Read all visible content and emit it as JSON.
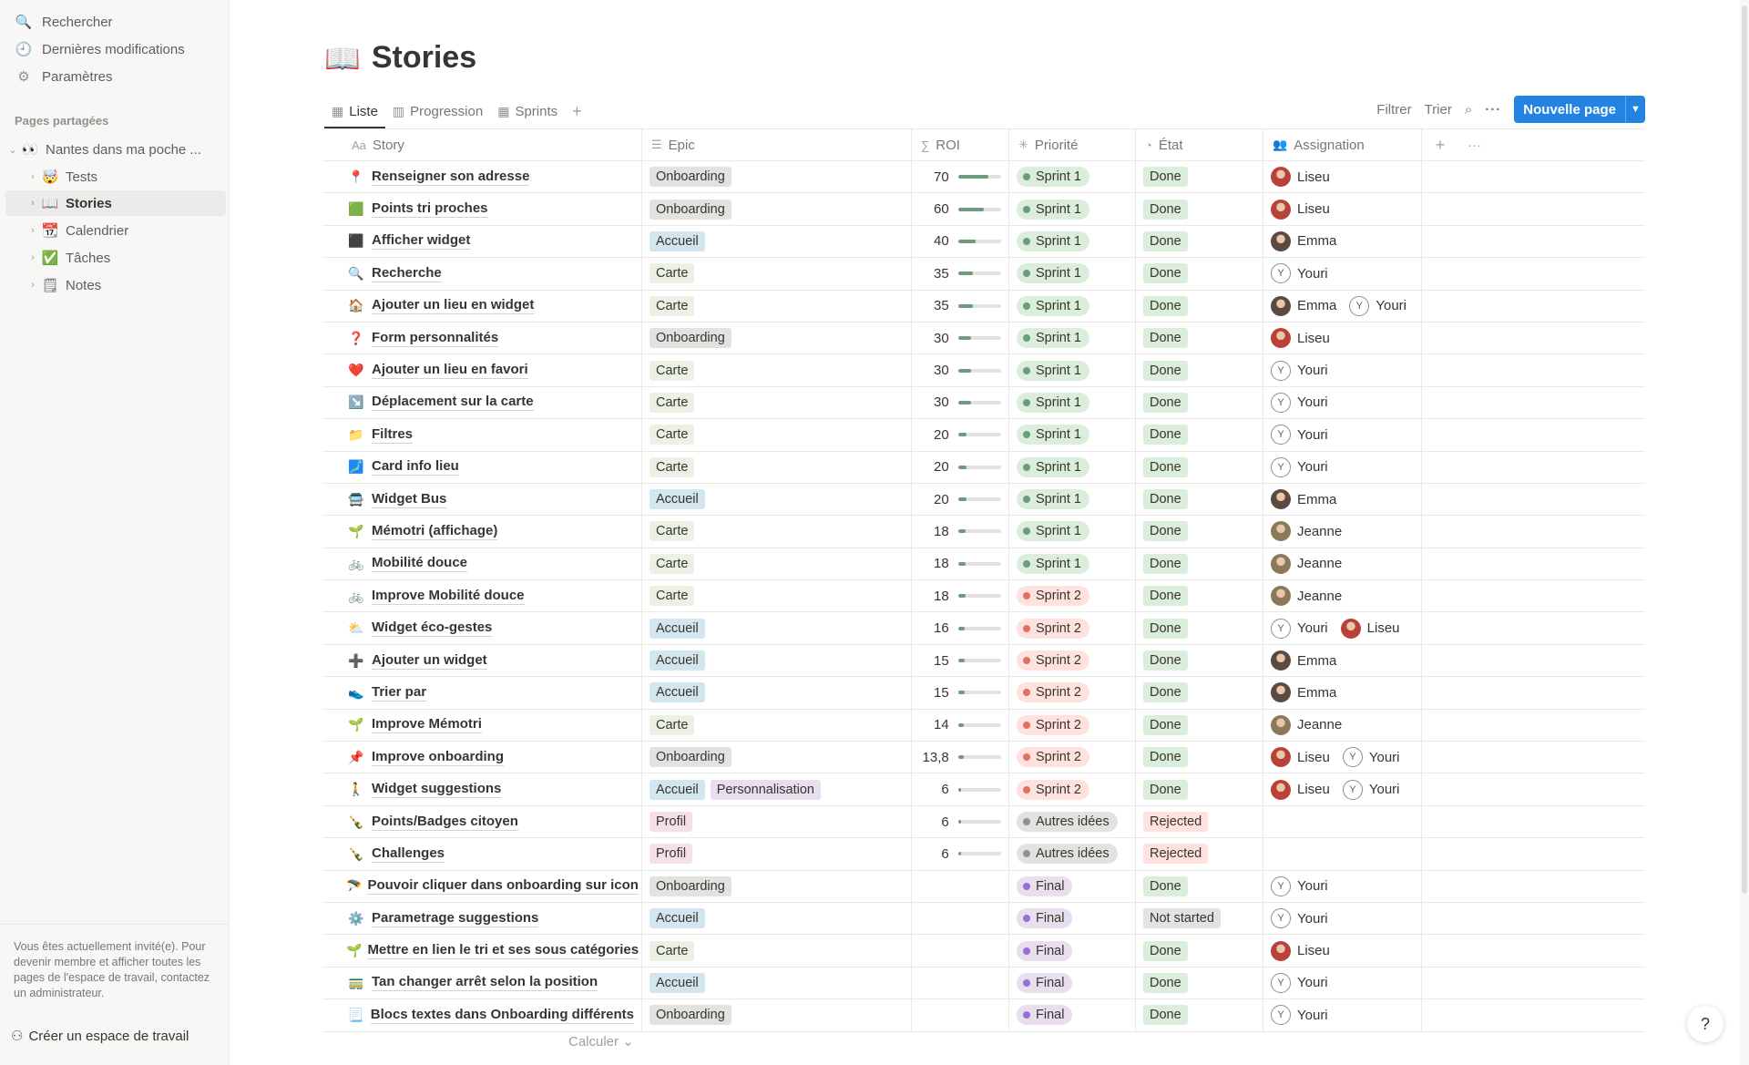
{
  "sidebar": {
    "nav": [
      {
        "label": "Rechercher",
        "icon": "search-icon",
        "glyph": "🔍"
      },
      {
        "label": "Dernières modifications",
        "icon": "clock-icon",
        "glyph": "🕘"
      },
      {
        "label": "Paramètres",
        "icon": "gear-icon",
        "glyph": "⚙"
      }
    ],
    "section_title": "Pages partagées",
    "tree": [
      {
        "label": "Nantes dans ma poche ...",
        "emoji": "👀",
        "expanded": true,
        "depth": 0,
        "active": false
      },
      {
        "label": "Tests",
        "emoji": "🤯",
        "depth": 1,
        "active": false
      },
      {
        "label": "Stories",
        "emoji": "📖",
        "depth": 1,
        "active": true
      },
      {
        "label": "Calendrier",
        "emoji": "📆",
        "depth": 1,
        "active": false
      },
      {
        "label": "Tâches",
        "emoji": "✅",
        "depth": 1,
        "active": false
      },
      {
        "label": "Notes",
        "emoji": "🗒",
        "depth": 1,
        "active": false
      }
    ],
    "guest_notice": "Vous êtes actuellement invité(e). Pour devenir membre et afficher toutes les pages de l'espace de travail, contactez un administrateur.",
    "create_workspace": "Créer un espace de travail"
  },
  "page": {
    "emoji": "📖",
    "title": "Stories"
  },
  "views": [
    {
      "label": "Liste",
      "active": true
    },
    {
      "label": "Progression",
      "active": false
    },
    {
      "label": "Sprints",
      "active": false
    }
  ],
  "toolbar": {
    "filter": "Filtrer",
    "sort": "Trier",
    "new_page": "Nouvelle page"
  },
  "columns": [
    {
      "label": "Story",
      "icon": "Aa"
    },
    {
      "label": "Epic",
      "icon": "☰"
    },
    {
      "label": "ROI",
      "icon": "∑"
    },
    {
      "label": "Priorité",
      "icon": "✳"
    },
    {
      "label": "État",
      "icon": "◔"
    },
    {
      "label": "Assignation",
      "icon": "👥"
    }
  ],
  "colors": {
    "accent": "#2383e2",
    "sprint1_bg": "#dbeddb",
    "sprint1_dot": "#6c9b7d",
    "sprint2_bg": "#ffe2dd",
    "sprint2_dot": "#e16f64",
    "autres_bg": "#e3e2e0",
    "autres_dot": "#91918e",
    "final_bg": "#e8deee",
    "final_dot": "#9a6dd7",
    "done_bg": "#dbeddb",
    "rejected_bg": "#ffe2dd",
    "notstarted_bg": "#e3e2e0"
  },
  "people": {
    "Liseu": {
      "avatar": "photo",
      "color": "#b8423a"
    },
    "Emma": {
      "avatar": "photo",
      "color": "#5a4a42"
    },
    "Jeanne": {
      "avatar": "photo",
      "color": "#8a7a5a"
    },
    "Youri": {
      "avatar": "letter",
      "letter": "Y"
    }
  },
  "rows": [
    {
      "emoji": "📍",
      "title": "Renseigner son adresse",
      "epics": [
        "Onboarding"
      ],
      "roi": "70",
      "roi_value": 70,
      "priority": "Sprint 1",
      "status": "Done",
      "assignees": [
        "Liseu"
      ]
    },
    {
      "emoji": "🟩",
      "title": "Points tri proches",
      "epics": [
        "Onboarding"
      ],
      "roi": "60",
      "roi_value": 60,
      "priority": "Sprint 1",
      "status": "Done",
      "assignees": [
        "Liseu"
      ]
    },
    {
      "emoji": "⬛",
      "title": "Afficher widget",
      "epics": [
        "Accueil"
      ],
      "roi": "40",
      "roi_value": 40,
      "priority": "Sprint 1",
      "status": "Done",
      "assignees": [
        "Emma"
      ]
    },
    {
      "emoji": "🔍",
      "title": "Recherche",
      "epics": [
        "Carte"
      ],
      "roi": "35",
      "roi_value": 35,
      "priority": "Sprint 1",
      "status": "Done",
      "assignees": [
        "Youri"
      ]
    },
    {
      "emoji": "🏠",
      "title": "Ajouter un lieu en widget",
      "epics": [
        "Carte"
      ],
      "roi": "35",
      "roi_value": 35,
      "priority": "Sprint 1",
      "status": "Done",
      "assignees": [
        "Emma",
        "Youri"
      ]
    },
    {
      "emoji": "❓",
      "title": "Form personnalités",
      "epics": [
        "Onboarding"
      ],
      "roi": "30",
      "roi_value": 30,
      "priority": "Sprint 1",
      "status": "Done",
      "assignees": [
        "Liseu"
      ]
    },
    {
      "emoji": "❤️",
      "title": "Ajouter un lieu en favori",
      "epics": [
        "Carte"
      ],
      "roi": "30",
      "roi_value": 30,
      "priority": "Sprint 1",
      "status": "Done",
      "assignees": [
        "Youri"
      ]
    },
    {
      "emoji": "↘️",
      "title": "Déplacement sur la carte",
      "epics": [
        "Carte"
      ],
      "roi": "30",
      "roi_value": 30,
      "priority": "Sprint 1",
      "status": "Done",
      "assignees": [
        "Youri"
      ]
    },
    {
      "emoji": "📁",
      "title": "Filtres",
      "epics": [
        "Carte"
      ],
      "roi": "20",
      "roi_value": 20,
      "priority": "Sprint 1",
      "status": "Done",
      "assignees": [
        "Youri"
      ]
    },
    {
      "emoji": "🗾",
      "title": "Card info lieu",
      "epics": [
        "Carte"
      ],
      "roi": "20",
      "roi_value": 20,
      "priority": "Sprint 1",
      "status": "Done",
      "assignees": [
        "Youri"
      ]
    },
    {
      "emoji": "🚍",
      "title": "Widget Bus",
      "epics": [
        "Accueil"
      ],
      "roi": "20",
      "roi_value": 20,
      "priority": "Sprint 1",
      "status": "Done",
      "assignees": [
        "Emma"
      ]
    },
    {
      "emoji": "🌱",
      "title": "Mémotri (affichage)",
      "epics": [
        "Carte"
      ],
      "roi": "18",
      "roi_value": 18,
      "priority": "Sprint 1",
      "status": "Done",
      "assignees": [
        "Jeanne"
      ]
    },
    {
      "emoji": "🚲",
      "title": " Mobilité douce",
      "epics": [
        "Carte"
      ],
      "roi": "18",
      "roi_value": 18,
      "priority": "Sprint 1",
      "status": "Done",
      "assignees": [
        "Jeanne"
      ]
    },
    {
      "emoji": "🚲",
      "title": "Improve Mobilité douce",
      "epics": [
        "Carte"
      ],
      "roi": "18",
      "roi_value": 18,
      "priority": "Sprint 2",
      "status": "Done",
      "assignees": [
        "Jeanne"
      ]
    },
    {
      "emoji": "⛅",
      "title": "Widget éco-gestes",
      "epics": [
        "Accueil"
      ],
      "roi": "16",
      "roi_value": 16,
      "priority": "Sprint 2",
      "status": "Done",
      "assignees": [
        "Youri",
        "Liseu"
      ]
    },
    {
      "emoji": "➕",
      "title": "Ajouter un widget",
      "epics": [
        "Accueil"
      ],
      "roi": "15",
      "roi_value": 15,
      "priority": "Sprint 2",
      "status": "Done",
      "assignees": [
        "Emma"
      ]
    },
    {
      "emoji": "👟",
      "title": "Trier par",
      "epics": [
        "Accueil"
      ],
      "roi": "15",
      "roi_value": 15,
      "priority": "Sprint 2",
      "status": "Done",
      "assignees": [
        "Emma"
      ]
    },
    {
      "emoji": "🌱",
      "title": "Improve Mémotri",
      "epics": [
        "Carte"
      ],
      "roi": "14",
      "roi_value": 14,
      "priority": "Sprint 2",
      "status": "Done",
      "assignees": [
        "Jeanne"
      ]
    },
    {
      "emoji": "📌",
      "title": "Improve onboarding",
      "epics": [
        "Onboarding"
      ],
      "roi": "13,8",
      "roi_value": 13.8,
      "priority": "Sprint 2",
      "status": "Done",
      "assignees": [
        "Liseu",
        "Youri"
      ]
    },
    {
      "emoji": "🚶",
      "title": "Widget suggestions",
      "epics": [
        "Accueil",
        "Personnalisation"
      ],
      "roi": "6",
      "roi_value": 6,
      "priority": "Sprint 2",
      "status": "Done",
      "assignees": [
        "Liseu",
        "Youri"
      ]
    },
    {
      "emoji": "🍾",
      "title": "Points/Badges citoyen",
      "epics": [
        "Profil"
      ],
      "roi": "6",
      "roi_value": 6,
      "priority": "Autres idées",
      "status": "Rejected",
      "assignees": []
    },
    {
      "emoji": "🍾",
      "title": "Challenges",
      "epics": [
        "Profil"
      ],
      "roi": "6",
      "roi_value": 6,
      "priority": "Autres idées",
      "status": "Rejected",
      "assignees": []
    },
    {
      "emoji": "🪂",
      "title": "Pouvoir cliquer dans onboarding sur icon",
      "epics": [
        "Onboarding"
      ],
      "roi": "",
      "roi_value": null,
      "priority": "Final",
      "status": "Done",
      "assignees": [
        "Youri"
      ]
    },
    {
      "emoji": "⚙️",
      "title": "Parametrage suggestions",
      "epics": [
        "Accueil"
      ],
      "roi": "",
      "roi_value": null,
      "priority": "Final",
      "status": "Not started",
      "assignees": [
        "Youri"
      ]
    },
    {
      "emoji": "🌱",
      "title": "Mettre en lien le tri et ses sous catégories",
      "epics": [
        "Carte"
      ],
      "roi": "",
      "roi_value": null,
      "priority": "Final",
      "status": "Done",
      "assignees": [
        "Liseu"
      ]
    },
    {
      "emoji": "🚃",
      "title": "Tan changer arrêt selon la position",
      "epics": [
        "Accueil"
      ],
      "roi": "",
      "roi_value": null,
      "priority": "Final",
      "status": "Done",
      "assignees": [
        "Youri"
      ]
    },
    {
      "emoji": "📃",
      "title": "Blocs textes dans Onboarding différents",
      "epics": [
        "Onboarding"
      ],
      "roi": "",
      "roi_value": null,
      "priority": "Final",
      "status": "Done",
      "assignees": [
        "Youri"
      ]
    }
  ],
  "roi_max": 100,
  "footer": {
    "calculate": "Calculer"
  }
}
